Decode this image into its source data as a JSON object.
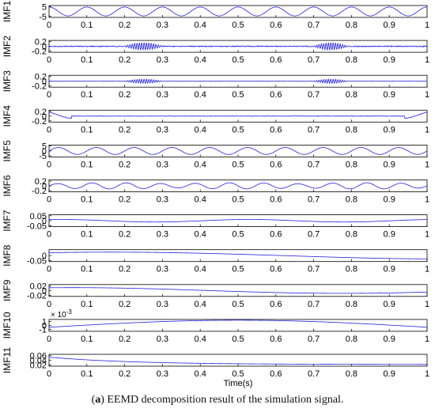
{
  "figure": {
    "caption_prefix": "a",
    "caption_text": " EEMD decomposition result of the simulation signal."
  },
  "chart_data": {
    "type": "line",
    "xlabel": "Time(s)",
    "xlim": [
      0,
      1
    ],
    "xticks": [
      "0",
      "0.1",
      "0.2",
      "0.3",
      "0.4",
      "0.5",
      "0.6",
      "0.7",
      "0.8",
      "0.9",
      "1"
    ],
    "grid": false,
    "line_color": "#2020e6",
    "panels": [
      {
        "name": "IMF1",
        "ylim": [
          -6,
          6
        ],
        "yticks": [
          "5",
          "-5"
        ],
        "signal": {
          "kind": "sine",
          "amp": 4.5,
          "freq": 10,
          "phase": 1.57
        }
      },
      {
        "name": "IMF2",
        "ylim": [
          -0.25,
          0.25
        ],
        "yticks": [
          "0.2",
          "0",
          "-0.2"
        ],
        "signal": {
          "kind": "bursts",
          "amp": 0.16,
          "bursts": [
            [
              0.2,
              0.3
            ],
            [
              0.7,
              0.79
            ]
          ],
          "noise": 0.02
        }
      },
      {
        "name": "IMF3",
        "ylim": [
          -0.25,
          0.25
        ],
        "yticks": [
          "0.2",
          "0",
          "-0.2"
        ],
        "signal": {
          "kind": "bursts",
          "amp": 0.09,
          "bursts": [
            [
              0.2,
              0.3
            ],
            [
              0.7,
              0.79
            ]
          ],
          "noise": 0.005
        }
      },
      {
        "name": "IMF4",
        "ylim": [
          -0.25,
          0.25
        ],
        "yticks": [
          "0.2",
          "0",
          "-0.2"
        ],
        "signal": {
          "kind": "edge",
          "amp": 0.1,
          "noise": 0.008
        }
      },
      {
        "name": "IMF5",
        "ylim": [
          -6,
          6
        ],
        "yticks": [
          "5",
          "0",
          "-5"
        ],
        "signal": {
          "kind": "sine",
          "amp": 3.5,
          "freq": 10,
          "phase": 0
        }
      },
      {
        "name": "IMF6",
        "ylim": [
          -0.25,
          0.25
        ],
        "yticks": [
          "0.2",
          "0",
          "-0.2"
        ],
        "signal": {
          "kind": "am",
          "amp": 0.13,
          "freq": 11,
          "mod": 0.35
        }
      },
      {
        "name": "IMF7",
        "ylim": [
          -0.06,
          0.06
        ],
        "yticks": [
          "0.05",
          "0",
          "-0.05"
        ],
        "signal": {
          "kind": "sine",
          "amp": 0.013,
          "freq": 2,
          "phase": 1.2
        }
      },
      {
        "name": "IMF8",
        "ylim": [
          -0.06,
          0.06
        ],
        "yticks": [
          "0",
          "-0.05"
        ],
        "signal": {
          "kind": "sine",
          "amp": 0.035,
          "freq": 0.55,
          "phase": 1.0
        }
      },
      {
        "name": "IMF9",
        "ylim": [
          -0.025,
          0.025
        ],
        "yticks": [
          "0.02",
          "0",
          "-0.02"
        ],
        "signal": {
          "kind": "sine",
          "amp": 0.012,
          "freq": 0.7,
          "phase": 1.3
        }
      },
      {
        "name": "IMF10",
        "ylim": [
          -1.5,
          1.5
        ],
        "yticks": [
          "1",
          "0",
          "-1"
        ],
        "exponent": "-3",
        "signal": {
          "kind": "sine",
          "amp": 1.3,
          "freq": 0.5,
          "phase": 0.0,
          "offset": -0.4
        }
      },
      {
        "name": "IMF11",
        "ylim": [
          0.015,
          0.065
        ],
        "yticks": [
          "0.06",
          "0.04",
          "0.02"
        ],
        "signal": {
          "kind": "decay",
          "start": 0.053,
          "end": 0.022
        }
      }
    ]
  }
}
